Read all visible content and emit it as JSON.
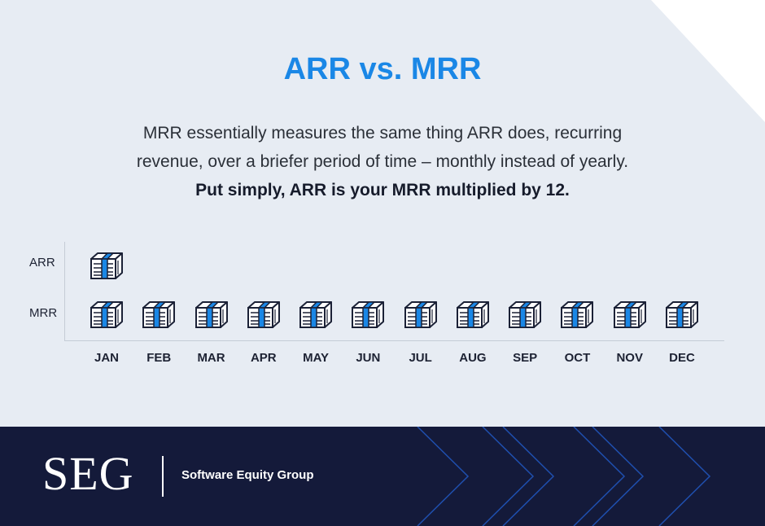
{
  "title": "ARR vs. MRR",
  "description": {
    "line1": "MRR essentially measures the same thing ARR does, recurring",
    "line2": "revenue, over a briefer period of time – monthly instead of yearly.",
    "line3": "Put simply, ARR is your MRR multiplied by 12."
  },
  "chart": {
    "rows": [
      {
        "label": "ARR",
        "months": [
          "JAN"
        ]
      },
      {
        "label": "MRR",
        "months": [
          "JAN",
          "FEB",
          "MAR",
          "APR",
          "MAY",
          "JUN",
          "JUL",
          "AUG",
          "SEP",
          "OCT",
          "NOV",
          "DEC"
        ]
      }
    ],
    "months": [
      "JAN",
      "FEB",
      "MAR",
      "APR",
      "MAY",
      "JUN",
      "JUL",
      "AUG",
      "SEP",
      "OCT",
      "NOV",
      "DEC"
    ],
    "icon": "money-stack-icon"
  },
  "footer": {
    "logo": "SEG",
    "company": "Software Equity Group"
  },
  "colors": {
    "accent": "#1a87e6",
    "background": "#e7ecf3",
    "footer": "#141a3a"
  }
}
